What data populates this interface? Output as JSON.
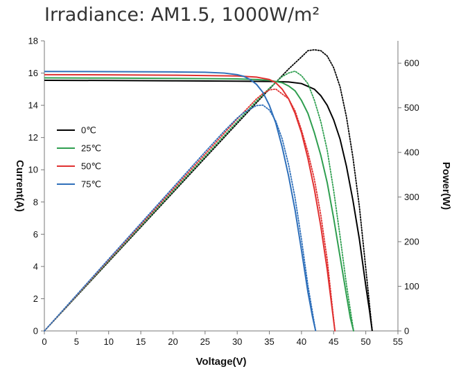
{
  "chart_data": {
    "type": "line",
    "title": "Irradiance: AM1.5, 1000W/m²",
    "xlabel": "Voltage(V)",
    "ylabel_left": "Current(A)",
    "ylabel_right": "Power(W)",
    "xlim": [
      0,
      55
    ],
    "ylim_left": [
      0,
      18
    ],
    "ylim_right": [
      0,
      650
    ],
    "x_ticks": [
      0,
      5,
      10,
      15,
      20,
      25,
      30,
      35,
      40,
      45,
      50,
      55
    ],
    "y_left_ticks": [
      0,
      2,
      4,
      6,
      8,
      10,
      12,
      14,
      16,
      18
    ],
    "y_right_ticks": [
      0,
      100,
      200,
      300,
      400,
      500,
      600
    ],
    "grid": false,
    "legend_position": "left",
    "series": [
      {
        "name": "0℃",
        "color": "#000000",
        "current": {
          "x": [
            0,
            10,
            20,
            30,
            35,
            38,
            40,
            42,
            43,
            44,
            45,
            46,
            47,
            48,
            49,
            50,
            50.6,
            51.0
          ],
          "y": [
            15.55,
            15.54,
            15.52,
            15.5,
            15.48,
            15.45,
            15.35,
            15.0,
            14.6,
            14.0,
            13.1,
            11.9,
            10.2,
            8.1,
            5.7,
            2.8,
            1.2,
            0
          ]
        },
        "power": {
          "x": [
            0,
            10,
            20,
            30,
            35,
            38,
            40,
            41,
            42,
            43,
            44,
            45,
            46,
            47,
            48,
            49,
            50,
            51.0
          ],
          "y": [
            0,
            155,
            310,
            465,
            542,
            587,
            614,
            628,
            630,
            628,
            616,
            590,
            547,
            479,
            389,
            279,
            140,
            0
          ]
        }
      },
      {
        "name": "25℃",
        "color": "#2e9e4f",
        "current": {
          "x": [
            0,
            10,
            20,
            30,
            33,
            35,
            37,
            38,
            39,
            40,
            41,
            42,
            43,
            44,
            45,
            46,
            47,
            47.6,
            48.1
          ],
          "y": [
            15.7,
            15.69,
            15.67,
            15.64,
            15.6,
            15.55,
            15.4,
            15.2,
            14.9,
            14.3,
            13.5,
            12.3,
            10.9,
            9.2,
            7.0,
            4.6,
            2.2,
            0.8,
            0
          ]
        },
        "power": {
          "x": [
            0,
            10,
            20,
            30,
            33,
            35,
            37,
            38,
            39,
            40,
            41,
            42,
            43,
            44,
            45,
            46,
            47,
            48.1
          ],
          "y": [
            0,
            157,
            313,
            469,
            515,
            544,
            570,
            578,
            582,
            572,
            554,
            517,
            469,
            405,
            315,
            212,
            103,
            0
          ]
        }
      },
      {
        "name": "50℃",
        "color": "#e03030",
        "current": {
          "x": [
            0,
            10,
            20,
            30,
            33,
            35,
            36,
            37,
            38,
            39,
            40,
            41,
            42,
            43,
            44,
            44.6,
            45.2
          ],
          "y": [
            15.9,
            15.89,
            15.87,
            15.82,
            15.75,
            15.6,
            15.4,
            15.0,
            14.4,
            13.5,
            12.3,
            10.7,
            8.8,
            6.5,
            3.8,
            1.9,
            0
          ]
        },
        "power": {
          "x": [
            0,
            10,
            20,
            30,
            33,
            34,
            35,
            36,
            37,
            38,
            39,
            40,
            41,
            42,
            43,
            44,
            45.2
          ],
          "y": [
            0,
            159,
            317,
            475,
            520,
            532,
            540,
            542,
            531,
            520,
            493,
            450,
            400,
            340,
            260,
            160,
            0
          ]
        }
      },
      {
        "name": "75℃",
        "color": "#2e6fba",
        "current": {
          "x": [
            0,
            10,
            20,
            25,
            28,
            30,
            31,
            32,
            33,
            34,
            35,
            36,
            37,
            38,
            39,
            40,
            41,
            41.7,
            42.2
          ],
          "y": [
            16.1,
            16.09,
            16.07,
            16.05,
            16.0,
            15.9,
            15.8,
            15.6,
            15.3,
            14.8,
            14.0,
            12.9,
            11.4,
            9.6,
            7.5,
            5.0,
            2.4,
            0.9,
            0
          ]
        },
        "power": {
          "x": [
            0,
            10,
            20,
            25,
            28,
            30,
            31,
            32,
            33,
            34,
            35,
            36,
            37,
            38,
            39,
            40,
            41,
            42.2
          ],
          "y": [
            0,
            161,
            321,
            401,
            448,
            477,
            489,
            497,
            505,
            506,
            495,
            470,
            430,
            372,
            298,
            205,
            102,
            0
          ]
        }
      }
    ]
  }
}
